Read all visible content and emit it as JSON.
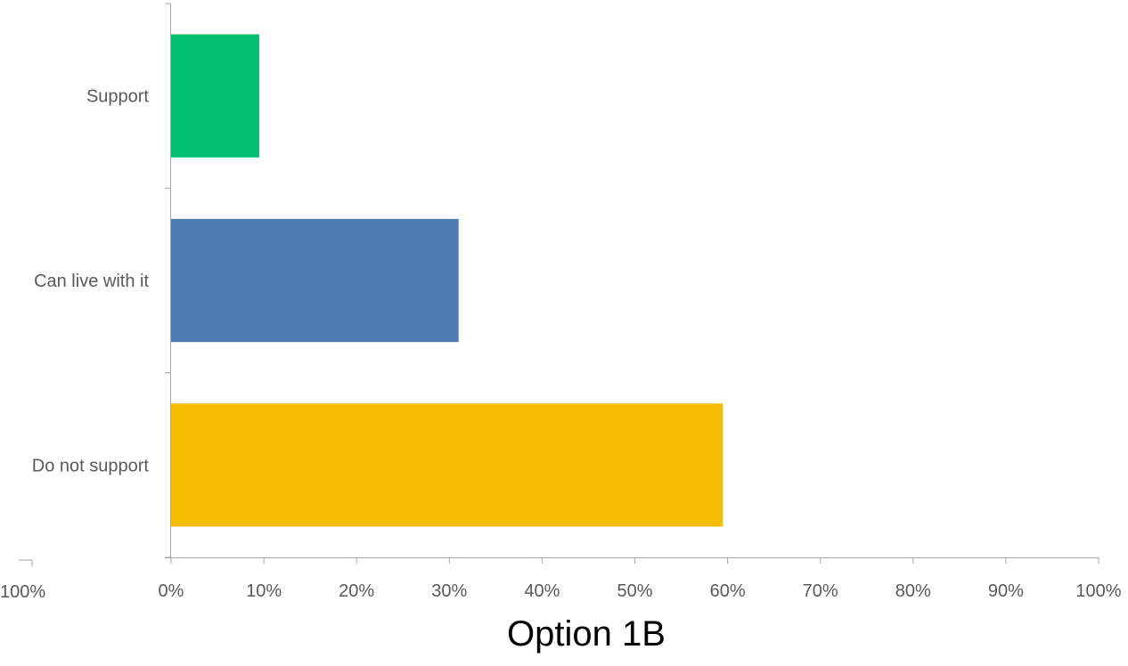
{
  "chart_data": {
    "type": "bar",
    "orientation": "horizontal",
    "title": "Option 1B",
    "categories": [
      "Support",
      "Can live with it",
      "Do not support"
    ],
    "values": [
      0.095,
      0.31,
      0.595
    ],
    "colors": [
      "#00BF6F",
      "#507CB6",
      "#F6BE00"
    ],
    "xlim": [
      0,
      1
    ],
    "x_ticks": [
      "0%",
      "10%",
      "20%",
      "30%",
      "40%",
      "50%",
      "60%",
      "70%",
      "80%",
      "90%",
      "100%"
    ],
    "extra_tick_label": "100%",
    "grid": false,
    "legend": "none"
  }
}
